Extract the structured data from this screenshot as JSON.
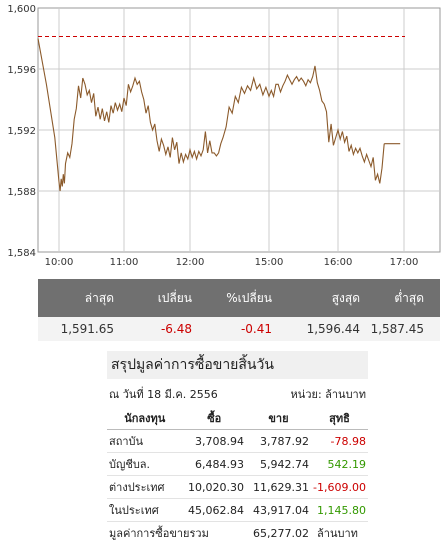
{
  "chart_data": {
    "type": "line",
    "x_ticks": [
      "10:00",
      "11:00",
      "12:00",
      "15:00",
      "16:00",
      "17:00"
    ],
    "y_ticks": [
      "1,584",
      "1,588",
      "1,592",
      "1,596",
      "1,600"
    ],
    "ylim": [
      1584,
      1600
    ],
    "reference_line": 1598.13,
    "colors": {
      "line": "#8b5a2b",
      "reference": "#cc0000",
      "grid": "#cccccc",
      "frame": "#999999"
    },
    "series": [
      {
        "x": [
          "9:55",
          "9:57",
          "9:59",
          "10:00",
          "10:01",
          "10:02",
          "10:03",
          "10:04",
          "10:05",
          "10:06",
          "10:08",
          "10:10",
          "10:12",
          "10:14",
          "10:16",
          "10:18",
          "10:20",
          "10:22",
          "10:24",
          "10:26",
          "10:28",
          "10:30",
          "10:32",
          "10:34",
          "10:36",
          "10:38",
          "10:40",
          "10:42",
          "10:44",
          "10:46",
          "10:48",
          "10:50",
          "10:52",
          "10:54",
          "10:56",
          "10:58",
          "11:00",
          "11:02",
          "11:04",
          "11:06",
          "11:08",
          "11:10",
          "11:12",
          "11:14",
          "11:16",
          "11:18",
          "11:20",
          "11:22",
          "11:24",
          "11:26",
          "11:28",
          "11:30",
          "11:32",
          "11:34",
          "11:36",
          "11:38",
          "11:40",
          "11:42",
          "11:44",
          "11:46",
          "11:48",
          "11:50",
          "11:52",
          "11:54",
          "11:56",
          "11:58",
          "12:00",
          "12:02",
          "12:04",
          "12:06",
          "12:08",
          "12:10",
          "12:12",
          "12:14",
          "12:16",
          "12:18",
          "12:20",
          "12:22",
          "12:24",
          "12:26",
          "12:28",
          "14:30",
          "14:32",
          "14:34",
          "14:36",
          "14:38",
          "14:40",
          "14:42",
          "14:44",
          "14:46",
          "14:48",
          "14:50",
          "14:52",
          "14:54",
          "14:56",
          "14:58",
          "15:00",
          "15:02",
          "15:04",
          "15:06",
          "15:08",
          "15:10",
          "15:12",
          "15:14",
          "15:16",
          "15:18",
          "15:20",
          "15:22",
          "15:24",
          "15:26",
          "15:28",
          "15:30",
          "15:32",
          "15:34",
          "15:36",
          "15:38",
          "15:40",
          "15:42",
          "15:44",
          "15:46",
          "15:48",
          "15:50",
          "15:52",
          "15:54",
          "15:56",
          "15:58",
          "16:00",
          "16:02",
          "16:04",
          "16:06",
          "16:08",
          "16:10",
          "16:12",
          "16:14",
          "16:16",
          "16:18",
          "16:20",
          "16:22",
          "16:24",
          "16:26",
          "16:28",
          "16:30",
          "16:32",
          "16:34",
          "16:36",
          "16:38",
          "16:40",
          "16:42"
        ],
        "y": [
          1598.0,
          1595.0,
          1591.5,
          1588.6,
          1588.0,
          1588.8,
          1588.3,
          1589.1,
          1588.5,
          1589.8,
          1590.5,
          1590.2,
          1591.1,
          1592.7,
          1593.4,
          1594.9,
          1594.1,
          1595.4,
          1595.0,
          1594.3,
          1594.6,
          1593.8,
          1594.4,
          1592.9,
          1593.5,
          1592.7,
          1593.4,
          1592.6,
          1593.2,
          1592.5,
          1593.6,
          1593.1,
          1593.8,
          1593.3,
          1593.7,
          1593.2,
          1594.1,
          1593.6,
          1595.0,
          1594.5,
          1594.9,
          1595.4,
          1595.0,
          1595.2,
          1594.5,
          1594.0,
          1593.1,
          1593.6,
          1592.5,
          1592.0,
          1592.4,
          1591.3,
          1590.6,
          1591.4,
          1591.0,
          1590.4,
          1590.9,
          1590.2,
          1591.5,
          1590.7,
          1591.2,
          1589.8,
          1590.5,
          1589.9,
          1590.4,
          1590.1,
          1590.7,
          1590.2,
          1590.6,
          1590.1,
          1590.6,
          1590.3,
          1590.7,
          1591.9,
          1590.5,
          1591.3,
          1590.5,
          1590.5,
          1590.3,
          1590.5,
          1591.1,
          1591.5,
          1592.2,
          1593.5,
          1593.1,
          1594.2,
          1593.8,
          1594.8,
          1594.4,
          1594.9,
          1594.6,
          1595.4,
          1594.7,
          1595.0,
          1594.3,
          1594.8,
          1594.2,
          1594.6,
          1594.2,
          1595.0,
          1595.0,
          1594.5,
          1594.9,
          1595.2,
          1595.6,
          1595.3,
          1595.0,
          1595.3,
          1595.5,
          1595.2,
          1595.4,
          1595.2,
          1594.9,
          1595.3,
          1595.1,
          1595.5,
          1596.2,
          1595.1,
          1594.6,
          1593.9,
          1593.7,
          1593.2,
          1591.2,
          1592.4,
          1591.0,
          1591.5,
          1592.0,
          1591.4,
          1591.9,
          1591.2,
          1591.6,
          1590.6,
          1591.0,
          1590.4,
          1590.8,
          1590.5,
          1590.8,
          1590.3,
          1589.9,
          1590.4,
          1590.0,
          1589.6,
          1590.2,
          1588.7,
          1589.1,
          1588.5,
          1589.5,
          1591.1
        ],
        "tail": {
          "x1": "16:48",
          "y1": 1591.1,
          "x2": "16:56",
          "y2": 1591.65
        }
      }
    ]
  },
  "quote": {
    "headers": [
      "ล่าสุด",
      "เปลี่ยน",
      "%เปลี่ยน",
      "สูงสุด",
      "ต่ำสุด"
    ],
    "values": [
      "1,591.65",
      "-6.48",
      "-0.41",
      "1,596.44",
      "1,587.45"
    ]
  },
  "summary": {
    "title": "สรุปมูลค่าการซื้อขายสิ้นวัน",
    "date": "ณ วันที่ 18 มี.ค. 2556",
    "unit": "หน่วย: ล้านบาท",
    "headers": [
      "นักลงทุน",
      "ซื้อ",
      "ขาย",
      "สุทธิ"
    ],
    "rows": [
      {
        "name": "สถาบัน",
        "buy": "3,708.94",
        "sell": "3,787.92",
        "net": "-78.98"
      },
      {
        "name": "บัญชีบล.",
        "buy": "6,484.93",
        "sell": "5,942.74",
        "net": "542.19"
      },
      {
        "name": "ต่างประเทศ",
        "buy": "10,020.30",
        "sell": "11,629.31",
        "net": "-1,609.00"
      },
      {
        "name": "ในประเทศ",
        "buy": "45,062.84",
        "sell": "43,917.04",
        "net": "1,145.80"
      }
    ],
    "total_label": "มูลค่าการซื้อขายรวม",
    "total_value": "65,277.02",
    "total_unit": "ล้านบาท",
    "colors": {
      "negative": "#cc0000",
      "positive": "#339900"
    }
  }
}
